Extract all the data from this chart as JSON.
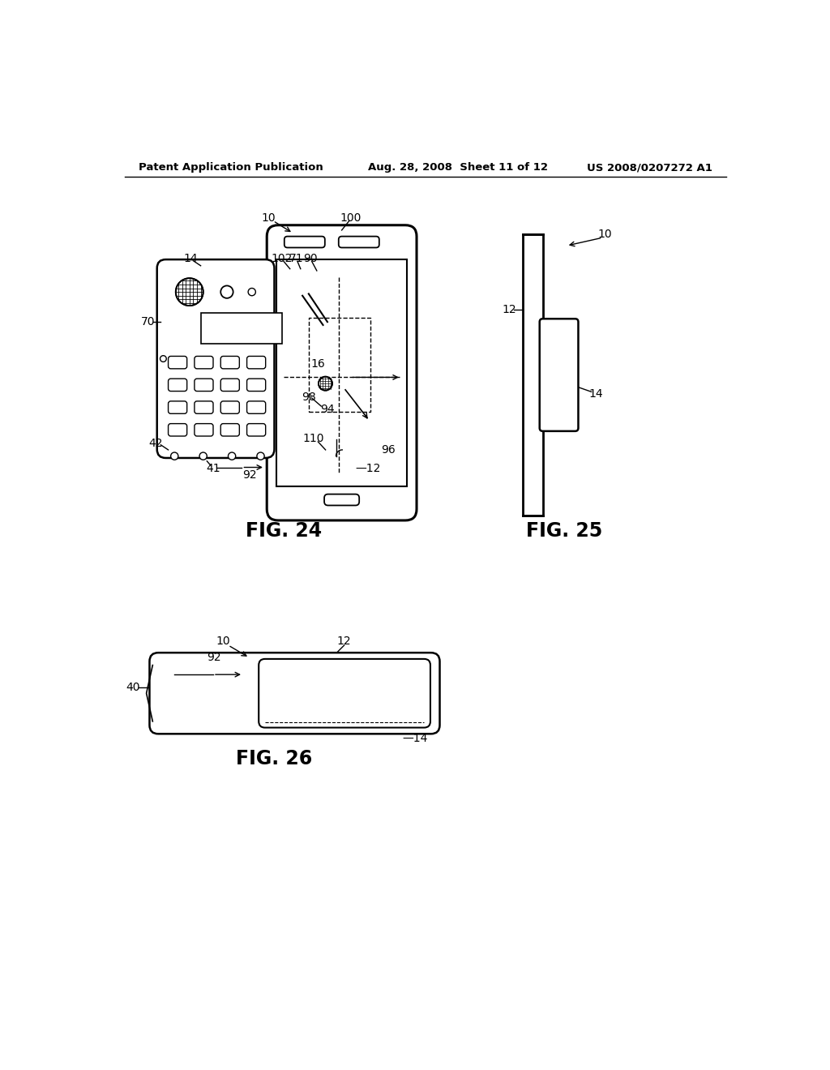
{
  "bg_color": "#ffffff",
  "header_left": "Patent Application Publication",
  "header_mid": "Aug. 28, 2008  Sheet 11 of 12",
  "header_right": "US 2008/0207272 A1",
  "fig24_label": "FIG. 24",
  "fig25_label": "FIG. 25",
  "fig26_label": "FIG. 26"
}
